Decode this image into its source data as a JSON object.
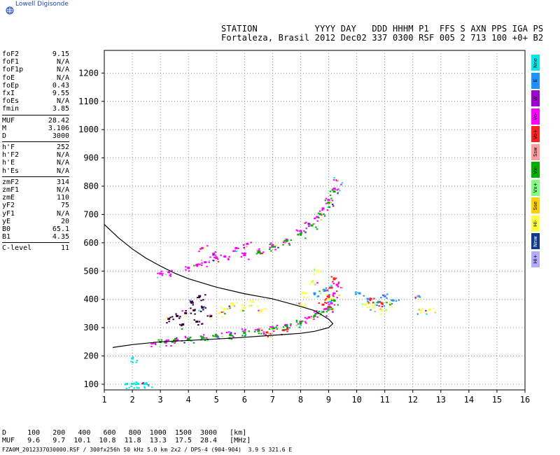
{
  "app": {
    "logo_text": "Lowell Digisonde"
  },
  "header": {
    "line1": "STATION           YYYY DAY   DDD HHHM P1  FFS S AXN PPS IGA PS",
    "line2": "Fortaleza, Brasil 2012 Dec02 337 0300 RSF 005 2 713 100 +0+ B2"
  },
  "params": {
    "group1": [
      {
        "name": "foF2",
        "value": "9.15"
      },
      {
        "name": "foF1",
        "value": "N/A"
      },
      {
        "name": "foF1p",
        "value": "N/A"
      },
      {
        "name": "foE",
        "value": "N/A"
      },
      {
        "name": "foEp",
        "value": "0.43"
      },
      {
        "name": "fxI",
        "value": "9.55"
      },
      {
        "name": "foEs",
        "value": "N/A"
      },
      {
        "name": "fmin",
        "value": "3.85"
      }
    ],
    "group2": [
      {
        "name": "MUF",
        "value": "28.42"
      },
      {
        "name": "M",
        "value": "3.106"
      },
      {
        "name": "D",
        "value": "3000"
      }
    ],
    "group3": [
      {
        "name": "h'F",
        "value": "252"
      },
      {
        "name": "h'F2",
        "value": "N/A"
      },
      {
        "name": "h'E",
        "value": "N/A"
      },
      {
        "name": "h'Es",
        "value": "N/A"
      }
    ],
    "group4": [
      {
        "name": "zmF2",
        "value": "314"
      },
      {
        "name": "zmF1",
        "value": "N/A"
      },
      {
        "name": "zmE",
        "value": "110"
      },
      {
        "name": "yF2",
        "value": "75"
      },
      {
        "name": "yF1",
        "value": "N/A"
      },
      {
        "name": "yE",
        "value": "20"
      },
      {
        "name": "B0",
        "value": "65.1"
      },
      {
        "name": "B1",
        "value": "4.35"
      }
    ],
    "group5": [
      {
        "name": "C-level",
        "value": "11"
      }
    ]
  },
  "legend": [
    {
      "label": "Nne",
      "color": "#00e8e8"
    },
    {
      "label": "E",
      "color": "#1e90ff"
    },
    {
      "label": "W",
      "color": "#a000d0"
    },
    {
      "label": "Vo-",
      "color": "#ff00ff"
    },
    {
      "label": "Vo+",
      "color": "#ff2020"
    },
    {
      "label": "Ssw",
      "color": "#ff9aa0"
    },
    {
      "label": "Vx-",
      "color": "#00b000"
    },
    {
      "label": "Vx+",
      "color": "#80ff80"
    },
    {
      "label": "Sse",
      "color": "#ffd000"
    },
    {
      "label": "Hi-",
      "color": "#ffff40"
    },
    {
      "label": "Nnw",
      "color": "#103a90"
    },
    {
      "label": "Hi+",
      "color": "#b4aaff"
    }
  ],
  "bottom": {
    "d_line": "D     100   200   400   600   800  1000  1500  3000   [km]",
    "muf_line": "MUF   9.6   9.7  10.1  10.8  11.8  13.3  17.5  28.4   [MHz]"
  },
  "footer": "FZA0M_2012337030000.RSF / 300fx256h 50 kHz 5.0 km 2x2 / DPS-4 (904-904)  3.9 S 321.6 E",
  "chart_data": {
    "type": "scatter",
    "title": "",
    "xlabel": "",
    "ylabel": "",
    "xlim": [
      1,
      16
    ],
    "ylim": [
      80,
      1280
    ],
    "xticks": [
      1,
      2,
      3,
      4,
      5,
      6,
      7,
      8,
      9,
      10,
      11,
      12,
      13,
      14,
      15,
      16
    ],
    "yticks": [
      100,
      200,
      300,
      400,
      500,
      600,
      700,
      800,
      900,
      1000,
      1100,
      1200
    ],
    "grid": true,
    "profile_curve": [
      [
        1.0,
        665
      ],
      [
        1.5,
        618
      ],
      [
        2.0,
        578
      ],
      [
        2.5,
        545
      ],
      [
        3.0,
        518
      ],
      [
        3.5,
        493
      ],
      [
        4.0,
        473
      ],
      [
        5.0,
        443
      ],
      [
        6.0,
        420
      ],
      [
        7.0,
        402
      ],
      [
        8.0,
        375
      ],
      [
        8.5,
        360
      ],
      [
        9.0,
        330
      ],
      [
        9.15,
        314
      ],
      [
        9.0,
        300
      ],
      [
        8.5,
        287
      ],
      [
        8.0,
        280
      ],
      [
        7.0,
        273
      ],
      [
        6.0,
        266
      ],
      [
        5.0,
        260
      ],
      [
        4.0,
        255
      ],
      [
        3.0,
        250
      ],
      [
        2.0,
        240
      ],
      [
        1.3,
        230
      ]
    ],
    "traces": [
      {
        "name": "O-trace low",
        "color": "#ff00ff",
        "points": [
          [
            2.8,
            245
          ],
          [
            3.2,
            250
          ],
          [
            3.6,
            255
          ],
          [
            4.0,
            260
          ],
          [
            4.5,
            265
          ],
          [
            5.0,
            270
          ],
          [
            5.5,
            275
          ],
          [
            6.0,
            285
          ],
          [
            6.5,
            292
          ],
          [
            7.0,
            300
          ],
          [
            7.5,
            308
          ],
          [
            8.0,
            320
          ],
          [
            8.3,
            335
          ],
          [
            8.6,
            350
          ],
          [
            8.9,
            365
          ],
          [
            9.1,
            385
          ],
          [
            9.2,
            420
          ],
          [
            9.3,
            450
          ]
        ]
      },
      {
        "name": "X-trace low",
        "color": "#00b000",
        "points": [
          [
            3.0,
            248
          ],
          [
            3.5,
            253
          ],
          [
            4.0,
            258
          ],
          [
            4.5,
            263
          ],
          [
            5.0,
            268
          ],
          [
            5.5,
            272
          ],
          [
            6.0,
            280
          ],
          [
            6.5,
            288
          ],
          [
            7.0,
            296
          ],
          [
            7.5,
            305
          ],
          [
            8.0,
            316
          ],
          [
            8.5,
            340
          ],
          [
            8.8,
            355
          ],
          [
            9.0,
            370
          ],
          [
            9.2,
            395
          ]
        ]
      },
      {
        "name": "Second hop",
        "color": "#ff00ff",
        "points": [
          [
            6.0,
            555
          ],
          [
            6.5,
            570
          ],
          [
            7.0,
            590
          ],
          [
            7.5,
            610
          ],
          [
            8.0,
            640
          ],
          [
            8.3,
            665
          ],
          [
            8.6,
            690
          ],
          [
            8.8,
            720
          ],
          [
            9.0,
            750
          ],
          [
            9.2,
            790
          ],
          [
            9.3,
            820
          ]
        ]
      },
      {
        "name": "Second hop X",
        "color": "#00b000",
        "points": [
          [
            6.5,
            565
          ],
          [
            7.0,
            585
          ],
          [
            7.5,
            605
          ],
          [
            8.0,
            630
          ],
          [
            8.4,
            660
          ],
          [
            8.7,
            700
          ],
          [
            9.0,
            740
          ],
          [
            9.2,
            780
          ]
        ]
      },
      {
        "name": "Spread F",
        "color": "#ffff40",
        "points": [
          [
            5.1,
            350
          ],
          [
            5.3,
            365
          ],
          [
            5.6,
            380
          ],
          [
            6.0,
            370
          ],
          [
            6.3,
            390
          ],
          [
            6.6,
            360
          ],
          [
            8.0,
            380
          ],
          [
            8.2,
            420
          ],
          [
            8.4,
            460
          ],
          [
            8.6,
            500
          ],
          [
            8.8,
            430
          ],
          [
            9.0,
            400
          ],
          [
            10.3,
            380
          ],
          [
            10.6,
            370
          ],
          [
            10.9,
            360
          ],
          [
            11.2,
            380
          ],
          [
            12.3,
            360
          ],
          [
            12.6,
            362
          ]
        ]
      },
      {
        "name": "Spread F dark",
        "color": "#3a0040",
        "points": [
          [
            3.3,
            330
          ],
          [
            3.6,
            340
          ],
          [
            3.9,
            350
          ],
          [
            4.2,
            360
          ],
          [
            4.5,
            370
          ],
          [
            4.8,
            340
          ],
          [
            4.3,
            320
          ],
          [
            3.8,
            310
          ],
          [
            4.1,
            390
          ],
          [
            4.4,
            410
          ]
        ]
      },
      {
        "name": "Echoes upper",
        "color": "#ff00ff",
        "points": [
          [
            3.0,
            490
          ],
          [
            3.3,
            495
          ],
          [
            4.0,
            510
          ],
          [
            4.3,
            520
          ],
          [
            4.6,
            530
          ],
          [
            5.0,
            545
          ],
          [
            5.3,
            550
          ],
          [
            5.7,
            580
          ],
          [
            6.1,
            595
          ],
          [
            4.5,
            580
          ],
          [
            4.9,
            560
          ]
        ]
      },
      {
        "name": "Low echoes",
        "color": "#00e8e8",
        "points": [
          [
            1.8,
            100
          ],
          [
            2.0,
            100
          ],
          [
            2.2,
            100
          ],
          [
            2.4,
            100
          ],
          [
            2.5,
            100
          ],
          [
            2.0,
            190
          ]
        ]
      },
      {
        "name": "Scatter blue",
        "color": "#1e90ff",
        "points": [
          [
            10.4,
            400
          ],
          [
            10.8,
            390
          ],
          [
            11.0,
            410
          ],
          [
            11.3,
            395
          ],
          [
            10.1,
            420
          ],
          [
            12.2,
            410
          ],
          [
            8.5,
            420
          ],
          [
            8.9,
            430
          ]
        ]
      },
      {
        "name": "Scatter red",
        "color": "#ff2020",
        "points": [
          [
            8.8,
            380
          ],
          [
            9.0,
            410
          ],
          [
            9.1,
            440
          ],
          [
            9.2,
            470
          ],
          [
            10.5,
            400
          ],
          [
            10.9,
            385
          ],
          [
            7.4,
            290
          ],
          [
            6.8,
            282
          ]
        ]
      }
    ]
  }
}
